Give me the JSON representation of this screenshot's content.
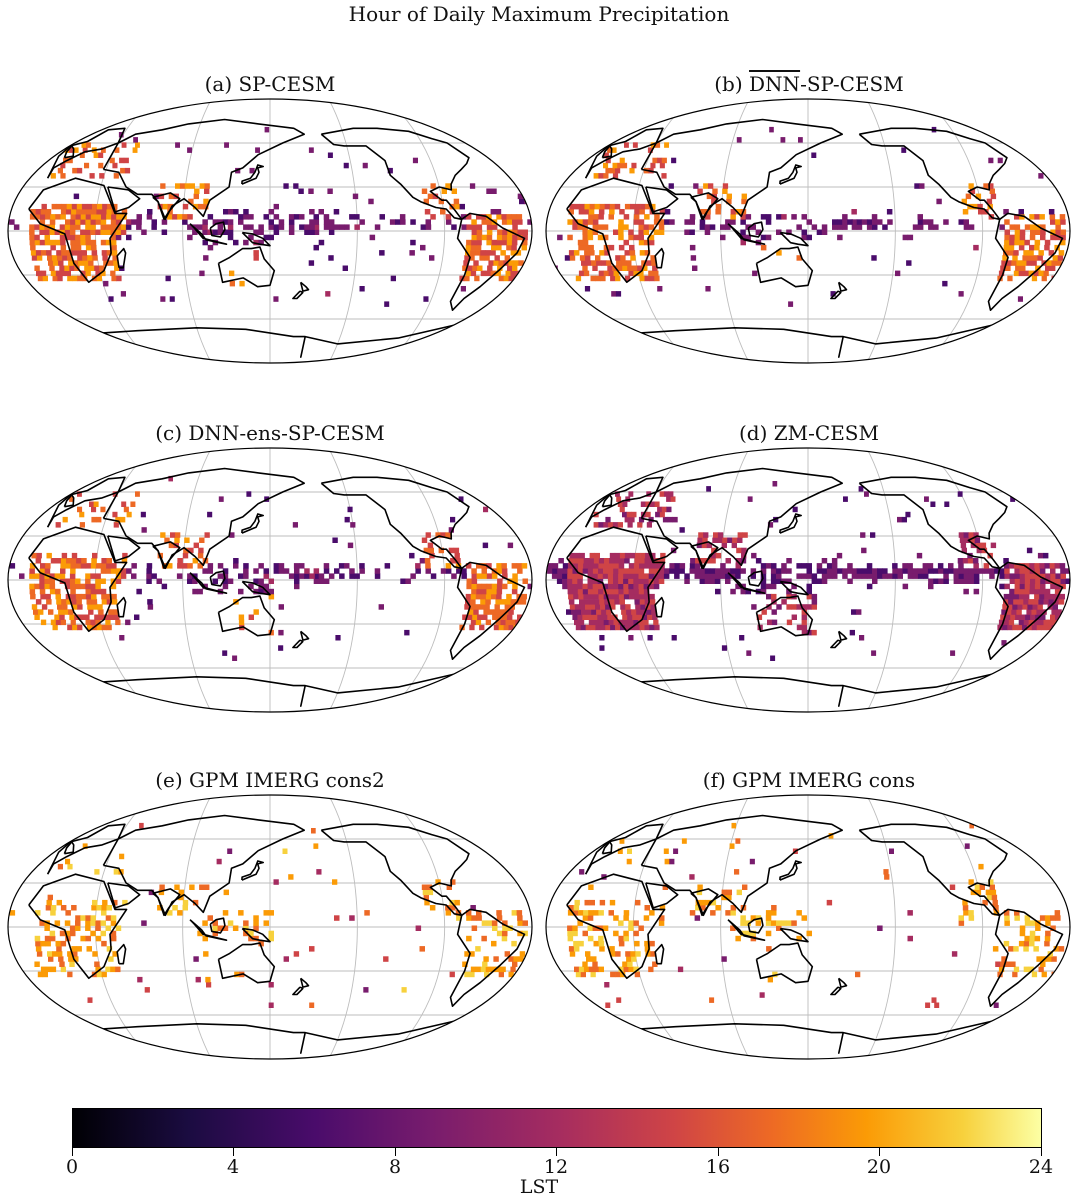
{
  "figure": {
    "title": "Hour of Daily Maximum Precipitation",
    "panels": [
      {
        "prefix": "(a) SP-CESM",
        "overline": "",
        "suffix": "",
        "seed": 11,
        "density": 0.6,
        "mix": "sp",
        "key": "a"
      },
      {
        "prefix": "(b) ",
        "overline": "DNN",
        "suffix": "-SP-CESM",
        "seed": 23,
        "density": 0.5,
        "mix": "sp",
        "key": "b"
      },
      {
        "prefix": "(c) DNN-ens-SP-CESM",
        "overline": "",
        "suffix": "",
        "seed": 37,
        "density": 0.55,
        "mix": "sp",
        "key": "c"
      },
      {
        "prefix": "(d) ZM-CESM",
        "overline": "",
        "suffix": "",
        "seed": 41,
        "density": 0.85,
        "mix": "zm",
        "key": "d"
      },
      {
        "prefix": "(e) GPM IMERG cons2",
        "overline": "",
        "suffix": "",
        "seed": 53,
        "density": 0.35,
        "mix": "gpm",
        "key": "e"
      },
      {
        "prefix": "(f) GPM IMERG cons",
        "overline": "",
        "suffix": "",
        "seed": 67,
        "density": 0.35,
        "mix": "gpm",
        "key": "f"
      }
    ]
  },
  "colorbar": {
    "label": "LST",
    "ticks": [
      "0",
      "4",
      "8",
      "12",
      "16",
      "20",
      "24"
    ],
    "range": [
      0,
      24
    ],
    "colors": [
      "#000004",
      "#1b0c41",
      "#4a0c6b",
      "#781c6d",
      "#a52c60",
      "#cf4446",
      "#ed6925",
      "#fb9b06",
      "#f7d13d",
      "#fcffa4"
    ]
  }
}
